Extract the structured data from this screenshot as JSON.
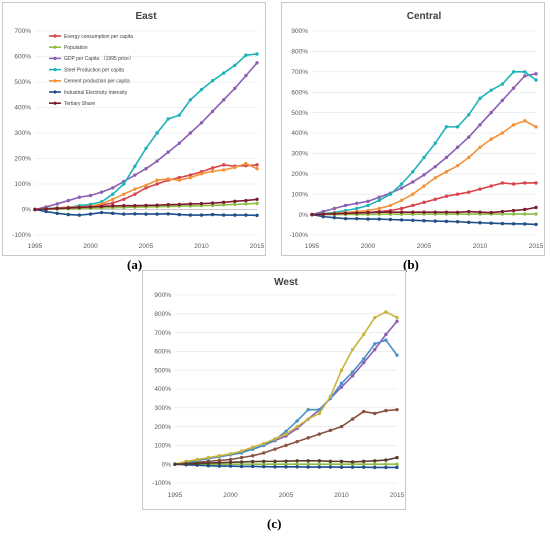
{
  "captions": {
    "a": "(a)",
    "b": "(b)",
    "c": "(c)"
  },
  "chart_data": [
    {
      "id": "east",
      "type": "line",
      "title": "East",
      "x": [
        1995,
        1996,
        1997,
        1998,
        1999,
        2000,
        2001,
        2002,
        2003,
        2004,
        2005,
        2006,
        2007,
        2008,
        2009,
        2010,
        2011,
        2012,
        2013,
        2014,
        2015
      ],
      "ylim": [
        -100,
        700
      ],
      "yticks": [
        -100,
        0,
        100,
        200,
        300,
        400,
        500,
        600,
        700
      ],
      "ytick_labels": [
        "-100%",
        "0%",
        "100%",
        "200%",
        "300%",
        "400%",
        "500%",
        "600%",
        "700%"
      ],
      "xticks": [
        1995,
        2000,
        2005,
        2010,
        2015
      ],
      "xtick_labels": [
        "1995",
        "2000",
        "2005",
        "2010",
        "2015"
      ],
      "legend_position": "top-left",
      "series": [
        {
          "name": "Energy consumption per capita",
          "color": "#d9434b",
          "values": [
            0,
            3,
            6,
            8,
            10,
            12,
            18,
            25,
            40,
            60,
            85,
            100,
            115,
            125,
            135,
            148,
            163,
            175,
            170,
            172,
            175
          ]
        },
        {
          "name": "Population",
          "color": "#8fbf45",
          "values": [
            0,
            1,
            2,
            3,
            4,
            5,
            6,
            7,
            8,
            9,
            10,
            11,
            12,
            13,
            14,
            15,
            16,
            18,
            20,
            22,
            24
          ]
        },
        {
          "name": "GDP per Capita （1995 price）",
          "color": "#8c5fb3",
          "values": [
            0,
            10,
            22,
            35,
            48,
            55,
            68,
            85,
            110,
            135,
            160,
            190,
            225,
            260,
            300,
            340,
            385,
            430,
            475,
            525,
            575
          ]
        },
        {
          "name": "Steel Production per capita",
          "color": "#1fb3b8",
          "values": [
            0,
            3,
            6,
            8,
            15,
            20,
            30,
            60,
            100,
            170,
            240,
            300,
            355,
            370,
            430,
            470,
            505,
            535,
            565,
            605,
            610
          ]
        },
        {
          "name": "Cement production per capita",
          "color": "#f3923a",
          "values": [
            0,
            2,
            5,
            8,
            10,
            12,
            22,
            40,
            60,
            80,
            95,
            115,
            120,
            115,
            125,
            140,
            150,
            155,
            165,
            180,
            160
          ]
        },
        {
          "name": "Industrial Electricity Intensity",
          "color": "#1f4e8a",
          "values": [
            0,
            -8,
            -15,
            -20,
            -22,
            -18,
            -12,
            -15,
            -18,
            -17,
            -18,
            -18,
            -17,
            -20,
            -22,
            -22,
            -20,
            -22,
            -22,
            -22,
            -23
          ]
        },
        {
          "name": "Tertiary Share",
          "color": "#7b1c2e",
          "values": [
            0,
            2,
            4,
            6,
            8,
            10,
            12,
            14,
            15,
            15,
            16,
            17,
            19,
            20,
            22,
            23,
            25,
            28,
            32,
            35,
            40
          ]
        }
      ]
    },
    {
      "id": "central",
      "type": "line",
      "title": "Central",
      "x": [
        1995,
        1996,
        1997,
        1998,
        1999,
        2000,
        2001,
        2002,
        2003,
        2004,
        2005,
        2006,
        2007,
        2008,
        2009,
        2010,
        2011,
        2012,
        2013,
        2014,
        2015
      ],
      "ylim": [
        -100,
        900
      ],
      "yticks": [
        -100,
        0,
        100,
        200,
        300,
        400,
        500,
        600,
        700,
        800,
        900
      ],
      "ytick_labels": [
        "-100%",
        "0%",
        "100%",
        "200%",
        "300%",
        "400%",
        "500%",
        "600%",
        "700%",
        "800%",
        "900%"
      ],
      "xticks": [
        1995,
        2000,
        2005,
        2010,
        2015
      ],
      "xtick_labels": [
        "1995",
        "2000",
        "2005",
        "2010",
        "2015"
      ],
      "series": [
        {
          "name": "Energy consumption per capita",
          "color": "#d9434b",
          "values": [
            0,
            2,
            4,
            6,
            8,
            10,
            15,
            20,
            30,
            45,
            60,
            75,
            90,
            100,
            110,
            125,
            140,
            155,
            150,
            155,
            155
          ]
        },
        {
          "name": "Population",
          "color": "#8fbf45",
          "values": [
            0,
            0,
            0,
            1,
            1,
            1,
            2,
            2,
            2,
            2,
            3,
            3,
            3,
            3,
            3,
            3,
            3,
            3,
            3,
            3,
            3
          ]
        },
        {
          "name": "GDP per Capita",
          "color": "#8c5fb3",
          "values": [
            0,
            15,
            30,
            45,
            55,
            65,
            85,
            105,
            130,
            160,
            195,
            235,
            280,
            330,
            380,
            440,
            500,
            560,
            620,
            680,
            690
          ]
        },
        {
          "name": "Steel Production per capita",
          "color": "#1fb3b8",
          "values": [
            0,
            5,
            10,
            20,
            30,
            45,
            70,
            100,
            150,
            210,
            280,
            350,
            430,
            430,
            490,
            570,
            610,
            640,
            700,
            700,
            660
          ]
        },
        {
          "name": "Cement production per capita",
          "color": "#f3923a",
          "values": [
            0,
            3,
            6,
            10,
            15,
            20,
            30,
            45,
            70,
            100,
            140,
            180,
            210,
            240,
            280,
            330,
            370,
            400,
            440,
            460,
            430
          ]
        },
        {
          "name": "Industrial Electricity Intensity",
          "color": "#1f4e8a",
          "values": [
            0,
            -10,
            -15,
            -20,
            -20,
            -22,
            -22,
            -24,
            -26,
            -28,
            -30,
            -32,
            -33,
            -35,
            -38,
            -40,
            -42,
            -44,
            -45,
            -46,
            -48
          ]
        },
        {
          "name": "Tertiary Share",
          "color": "#7b1c2e",
          "values": [
            0,
            2,
            4,
            6,
            8,
            10,
            12,
            12,
            12,
            12,
            12,
            12,
            12,
            11,
            15,
            12,
            10,
            15,
            20,
            25,
            35
          ]
        }
      ]
    },
    {
      "id": "west",
      "type": "line",
      "title": "West",
      "x": [
        1995,
        1996,
        1997,
        1998,
        1999,
        2000,
        2001,
        2002,
        2003,
        2004,
        2005,
        2006,
        2007,
        2008,
        2009,
        2010,
        2011,
        2012,
        2013,
        2014,
        2015
      ],
      "ylim": [
        -100,
        900
      ],
      "yticks": [
        -100,
        0,
        100,
        200,
        300,
        400,
        500,
        600,
        700,
        800,
        900
      ],
      "ytick_labels": [
        "-100%",
        "0%",
        "100%",
        "200%",
        "300%",
        "400%",
        "500%",
        "600%",
        "700%",
        "800%",
        "900%"
      ],
      "xticks": [
        1995,
        2000,
        2005,
        2010,
        2015
      ],
      "xtick_labels": [
        "1995",
        "2000",
        "2005",
        "2010",
        "2015"
      ],
      "series": [
        {
          "name": "Energy consumption per capita",
          "color": "#8a5040",
          "values": [
            0,
            5,
            10,
            15,
            20,
            25,
            35,
            45,
            60,
            80,
            100,
            120,
            140,
            160,
            180,
            200,
            240,
            280,
            270,
            285,
            290
          ]
        },
        {
          "name": "Population",
          "color": "#8fbf45",
          "values": [
            0,
            0,
            0,
            0,
            0,
            0,
            0,
            0,
            0,
            0,
            0,
            0,
            0,
            0,
            0,
            0,
            0,
            0,
            0,
            0,
            0
          ]
        },
        {
          "name": "GDP per Capita",
          "color": "#8c5fb3",
          "values": [
            0,
            10,
            20,
            30,
            40,
            50,
            65,
            80,
            100,
            125,
            150,
            190,
            240,
            290,
            350,
            410,
            470,
            540,
            610,
            690,
            760
          ]
        },
        {
          "name": "Steel Production per capita",
          "color": "#4a90c8",
          "values": [
            0,
            10,
            20,
            30,
            40,
            50,
            60,
            80,
            100,
            130,
            175,
            230,
            290,
            290,
            350,
            430,
            490,
            560,
            640,
            660,
            580
          ]
        },
        {
          "name": "Cement production per capita",
          "color": "#c8b43a",
          "values": [
            0,
            15,
            25,
            35,
            45,
            55,
            70,
            90,
            110,
            135,
            160,
            200,
            240,
            270,
            360,
            500,
            610,
            690,
            780,
            810,
            780
          ]
        },
        {
          "name": "Industrial Electricity Intensity",
          "color": "#1f4e8a",
          "values": [
            0,
            -3,
            -5,
            -8,
            -10,
            -10,
            -12,
            -12,
            -13,
            -14,
            -14,
            -14,
            -15,
            -15,
            -15,
            -16,
            -16,
            -16,
            -17,
            -17,
            -17
          ]
        },
        {
          "name": "Tertiary Share",
          "color": "#5a3a2a",
          "values": [
            0,
            2,
            4,
            6,
            8,
            10,
            12,
            14,
            15,
            15,
            16,
            18,
            18,
            18,
            15,
            15,
            12,
            15,
            18,
            22,
            35
          ]
        }
      ]
    }
  ]
}
